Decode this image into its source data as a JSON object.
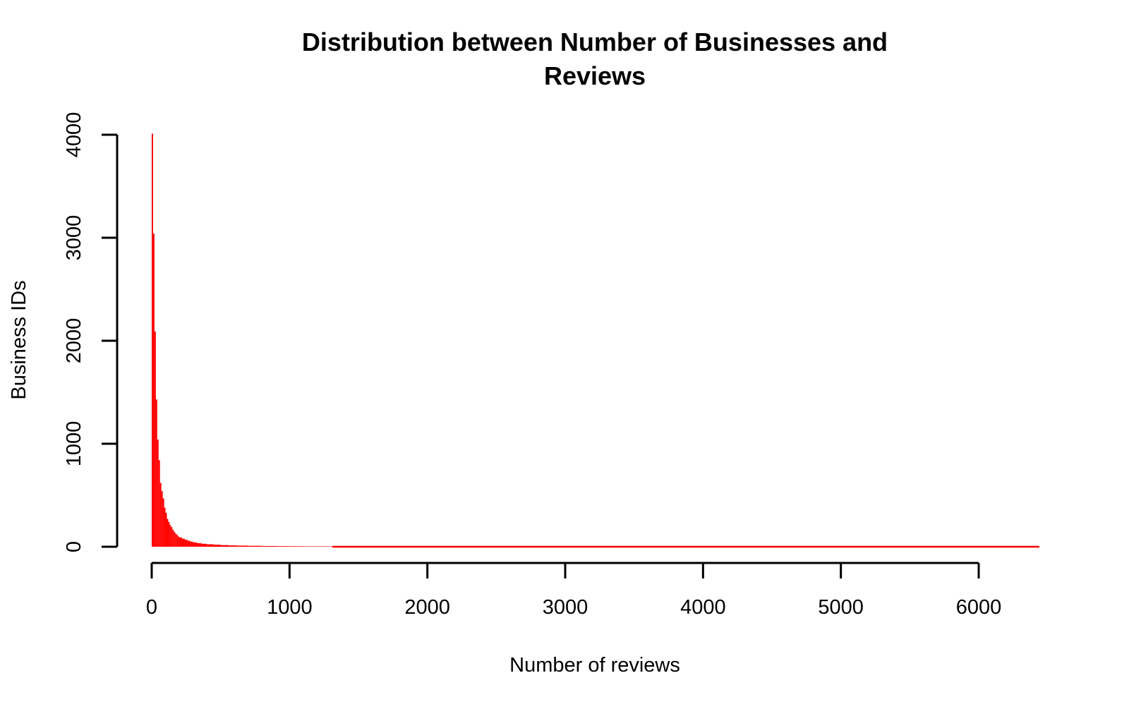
{
  "chart_data": {
    "type": "bar",
    "title": [
      "Distribution between Number of Businesses and",
      "Reviews"
    ],
    "xlabel": "Number of reviews",
    "ylabel": "Business IDs",
    "xlim": [
      0,
      6440
    ],
    "ylim": [
      0,
      4000
    ],
    "x_ticks": [
      "0",
      "1000",
      "2000",
      "3000",
      "4000",
      "5000",
      "6000"
    ],
    "y_ticks": [
      "0",
      "1000",
      "2000",
      "3000",
      "4000"
    ],
    "grid": false,
    "bar_color": "#ff0000",
    "bin_width": 10,
    "series": [
      {
        "x": [
          0,
          10,
          20,
          30,
          40,
          50,
          60,
          70,
          80,
          90,
          100,
          110,
          120,
          130,
          140,
          150,
          160,
          170,
          180,
          190,
          200,
          220,
          240,
          260,
          280,
          300,
          330,
          360,
          400,
          450,
          500,
          560,
          620,
          700,
          800,
          900,
          1000,
          1100,
          1300
        ],
        "values": [
          4010,
          3040,
          2090,
          1430,
          1040,
          840,
          620,
          540,
          470,
          380,
          330,
          270,
          240,
          210,
          190,
          165,
          145,
          128,
          115,
          100,
          90,
          78,
          68,
          58,
          50,
          42,
          35,
          29,
          24,
          20,
          16,
          13,
          11,
          9,
          7,
          6,
          5,
          4,
          3
        ]
      }
    ]
  }
}
